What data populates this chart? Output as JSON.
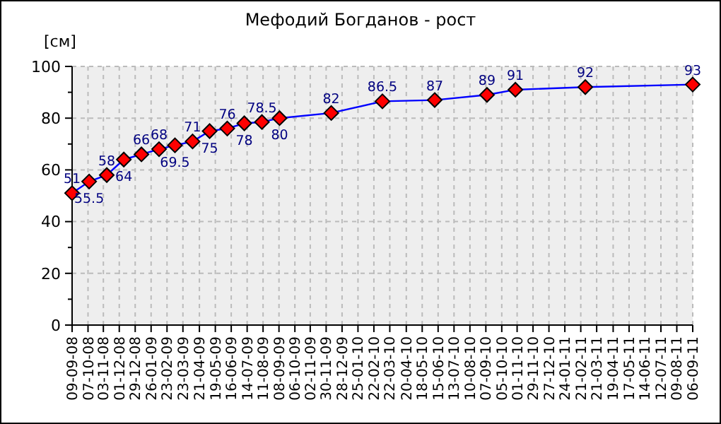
{
  "chart_data": {
    "type": "line",
    "title": "Мефодий Богданов - рост",
    "ylabel": "[см]",
    "x": [
      "2008-09-09",
      "2008-10-09",
      "2008-11-09",
      "2008-12-09",
      "2009-01-09",
      "2009-02-09",
      "2009-03-09",
      "2009-04-09",
      "2009-05-09",
      "2009-06-09",
      "2009-07-09",
      "2009-08-09",
      "2009-09-09",
      "2009-12-09",
      "2010-03-09",
      "2010-06-09",
      "2010-09-09",
      "2010-10-29",
      "2011-03-01",
      "2011-09-06"
    ],
    "series": [
      {
        "color": "#0000ff",
        "values": [
          51,
          55.5,
          58,
          64,
          66,
          68,
          69.5,
          71,
          75,
          76,
          78,
          78.5,
          80,
          82,
          86.5,
          87,
          89,
          91,
          92,
          93
        ]
      }
    ],
    "data_labels": true,
    "marker": "diamond",
    "grid": true,
    "ylim": [
      0,
      100
    ],
    "yticks": [
      0,
      {
        "value": 10,
        "label": null
      },
      20,
      {
        "value": 30,
        "label": null
      },
      40,
      {
        "value": 50,
        "label": null
      },
      60,
      {
        "value": 70,
        "label": null
      },
      80,
      {
        "value": 90,
        "label": null
      },
      100
    ],
    "xlim": [
      "2008-09-09",
      "2011-09-06"
    ],
    "xticks": [
      {
        "value": "2008-09-09",
        "label": "09-09-08"
      },
      {
        "value": "2008-10-07",
        "label": "07-10-08"
      },
      {
        "value": "2008-11-03",
        "label": "03-11-08"
      },
      {
        "value": "2008-12-01",
        "label": "01-12-08"
      },
      {
        "value": "2008-12-29",
        "label": "29-12-08"
      },
      {
        "value": "2009-01-26",
        "label": "26-01-09"
      },
      {
        "value": "2009-02-23",
        "label": "23-02-09"
      },
      {
        "value": "2009-03-23",
        "label": "23-03-09"
      },
      {
        "value": "2009-04-21",
        "label": "21-04-09"
      },
      {
        "value": "2009-05-19",
        "label": "19-05-09"
      },
      {
        "value": "2009-06-16",
        "label": "16-06-09"
      },
      {
        "value": "2009-07-14",
        "label": "14-07-09"
      },
      {
        "value": "2009-08-11",
        "label": "11-08-09"
      },
      {
        "value": "2009-09-08",
        "label": "08-09-09"
      },
      {
        "value": "2009-10-06",
        "label": "06-10-09"
      },
      {
        "value": "2009-11-02",
        "label": "02-11-09"
      },
      {
        "value": "2009-11-30",
        "label": "30-11-09"
      },
      {
        "value": "2009-12-28",
        "label": "28-12-09"
      },
      {
        "value": "2010-01-25",
        "label": "25-01-10"
      },
      {
        "value": "2010-02-22",
        "label": "22-02-10"
      },
      {
        "value": "2010-03-22",
        "label": "22-03-10"
      },
      {
        "value": "2010-04-20",
        "label": "20-04-10"
      },
      {
        "value": "2010-05-18",
        "label": "18-05-10"
      },
      {
        "value": "2010-06-15",
        "label": "15-06-10"
      },
      {
        "value": "2010-07-13",
        "label": "13-07-10"
      },
      {
        "value": "2010-08-10",
        "label": "10-08-10"
      },
      {
        "value": "2010-09-07",
        "label": "07-09-10"
      },
      {
        "value": "2010-10-05",
        "label": "05-10-10"
      },
      {
        "value": "2010-11-01",
        "label": "01-11-10"
      },
      {
        "value": "2010-11-29",
        "label": "29-11-10"
      },
      {
        "value": "2010-12-27",
        "label": "27-12-10"
      },
      {
        "value": "2011-01-24",
        "label": "24-01-11"
      },
      {
        "value": "2011-02-21",
        "label": "21-02-11"
      },
      {
        "value": "2011-03-21",
        "label": "21-03-11"
      },
      {
        "value": "2011-04-19",
        "label": "19-04-11"
      },
      {
        "value": "2011-05-17",
        "label": "17-05-11"
      },
      {
        "value": "2011-06-14",
        "label": "14-06-11"
      },
      {
        "value": "2011-07-12",
        "label": "12-07-11"
      },
      {
        "value": "2011-08-09",
        "label": "09-08-11"
      },
      {
        "value": "2011-09-06",
        "label": "06-09-11"
      }
    ]
  }
}
